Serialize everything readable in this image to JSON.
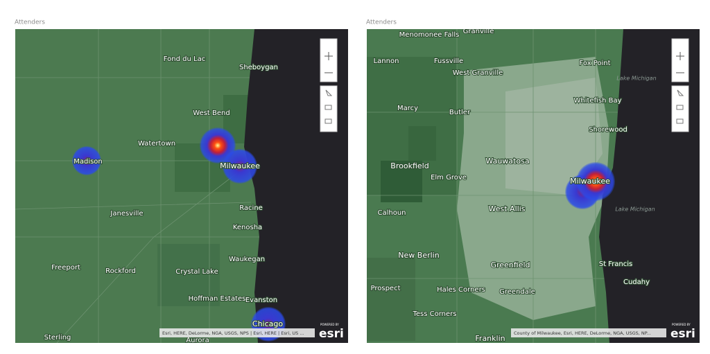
{
  "panels": [
    {
      "title": "Attenders",
      "places": [
        "Fond du Lac",
        "Sheboygan",
        "West Bend",
        "Watertown",
        "Madison",
        "Milwaukee",
        "Janesville",
        "Racine",
        "Kenosha",
        "Freeport",
        "Rockford",
        "Crystal Lake",
        "Waukegan",
        "Hoffman Estates",
        "Evanston",
        "Chicago",
        "Sterling",
        "Aurora"
      ],
      "attribution": "Esri, HERE, DeLorme, NGA, USGS, NPS | Esri, HERE | Esri, US ...",
      "logo": {
        "powered_by": "POWERED BY",
        "brand": "esri"
      }
    },
    {
      "title": "Attenders",
      "places": [
        "Menomonee Falls",
        "Lannon",
        "Fussville",
        "Granville",
        "West Granville",
        "Fox Point",
        "Lake Michigan",
        "Marcy",
        "Butler",
        "Whitefish Bay",
        "Shorewood",
        "Brookfield",
        "Elm Grove",
        "Wauwatosa",
        "Milwaukee",
        "West Allis",
        "Lake Michigan",
        "Calhoun",
        "New Berlin",
        "Greenfield",
        "St Francis",
        "Cudahy",
        "Prospect",
        "Hales Corners",
        "Greendale",
        "Tess Corners",
        "Franklin"
      ],
      "attribution": "County of Milwaukee, Esri, HERE, DeLorme, NGA, USGS, NP...",
      "logo": {
        "powered_by": "POWERED BY",
        "brand": "esri"
      }
    }
  ]
}
